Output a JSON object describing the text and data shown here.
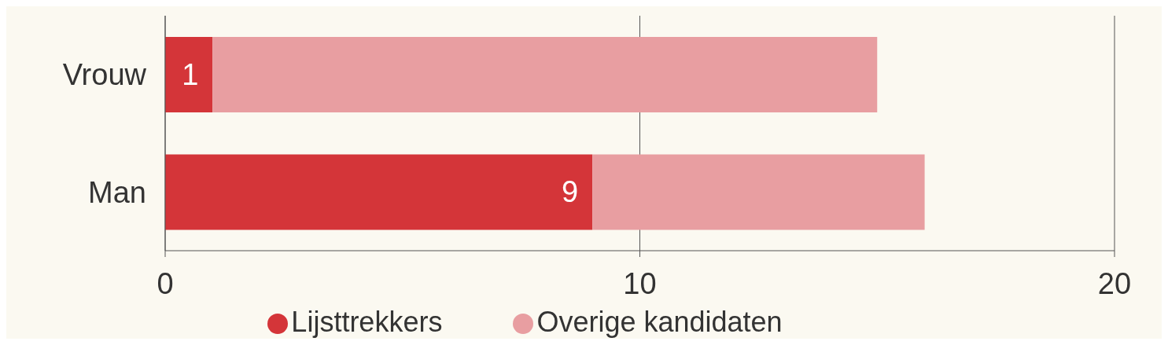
{
  "chart_data": {
    "type": "bar",
    "orientation": "horizontal",
    "stacked": true,
    "categories": [
      "Vrouw",
      "Man"
    ],
    "series": [
      {
        "name": "Lijsttrekkers",
        "color": "#d43539",
        "values": [
          1,
          9
        ],
        "value_labels": [
          "1",
          "9"
        ]
      },
      {
        "name": "Overige kandidaten",
        "color": "#e89ea1",
        "values": [
          14,
          7
        ]
      }
    ],
    "xlim": [
      0,
      20
    ],
    "xticks": [
      0,
      10,
      20
    ],
    "grid": "x",
    "legend": "bottom"
  }
}
